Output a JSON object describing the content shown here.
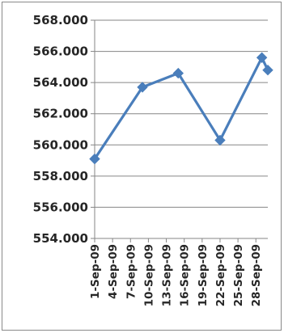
{
  "chart_data": {
    "type": "line",
    "title": "",
    "xlabel": "",
    "ylabel": "",
    "ylim": [
      554.0,
      568.0
    ],
    "y_ticks": [
      "554.000",
      "556.000",
      "558.000",
      "560.000",
      "562.000",
      "564.000",
      "566.000",
      "568.000"
    ],
    "y_tick_values": [
      554,
      556,
      558,
      560,
      562,
      564,
      566,
      568
    ],
    "x_tick_labels": [
      "1-Sep-09",
      "4-Sep-09",
      "7-Sep-09",
      "10-Sep-09",
      "13-Sep-09",
      "16-Sep-09",
      "19-Sep-09",
      "22-Sep-09",
      "25-Sep-09",
      "28-Sep-09"
    ],
    "x_tick_dates": [
      "2009-09-01",
      "2009-09-04",
      "2009-09-07",
      "2009-09-10",
      "2009-09-13",
      "2009-09-16",
      "2009-09-19",
      "2009-09-22",
      "2009-09-25",
      "2009-09-28"
    ],
    "xlim": [
      "2009-09-01",
      "2009-09-30"
    ],
    "grid": true,
    "legend": "none",
    "series": [
      {
        "color": "#4a7ebb",
        "marker": "diamond",
        "points": [
          {
            "x": "2009-09-01",
            "y": 559.1
          },
          {
            "x": "2009-09-09",
            "y": 563.7
          },
          {
            "x": "2009-09-15",
            "y": 564.6
          },
          {
            "x": "2009-09-22",
            "y": 560.3
          },
          {
            "x": "2009-09-29",
            "y": 565.6
          },
          {
            "x": "2009-09-30",
            "y": 564.8
          }
        ]
      }
    ]
  }
}
